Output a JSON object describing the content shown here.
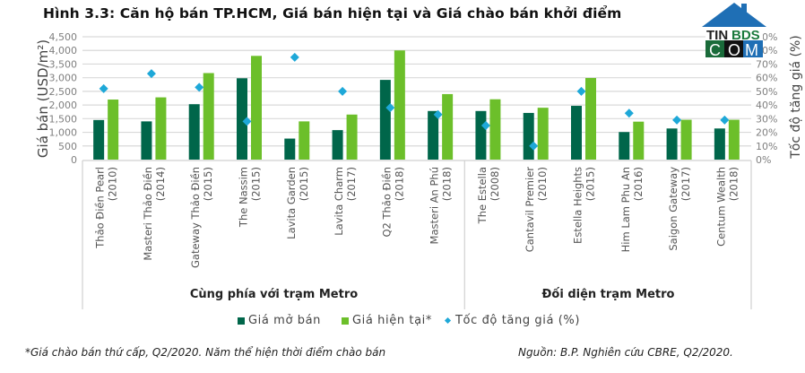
{
  "title": "Hình 3.3: Căn hộ bán TP.HCM, Giá bán hiện tại và Giá chào bán khởi điểm",
  "logo": {
    "line1_dark": "TIN",
    "line1_green": "BDS",
    "line2": [
      "C",
      "O",
      "M"
    ],
    "roof_color": "#1f6fb5"
  },
  "colors": {
    "gia_mo_ban": "#00664a",
    "gia_hien_tai": "#6cbf2a",
    "toc_do": "#1ea8d8",
    "grid": "#d9d9d9",
    "axis_text": "#7f7f7f"
  },
  "groups": [
    {
      "label": "Cùng phía với trạm Metro"
    },
    {
      "label": "Đối diện trạm Metro"
    }
  ],
  "legend": [
    {
      "label": "Giá mở bán",
      "marker": "square",
      "color": "#00664a"
    },
    {
      "label": "Giá hiện tại*",
      "marker": "square",
      "color": "#6cbf2a"
    },
    {
      "label": "Tốc độ tăng giá (%)",
      "marker": "diamond",
      "color": "#1ea8d8"
    }
  ],
  "footnote_left": "*Giá chào bán thứ cấp, Q2/2020. Năm thể hiện thời điểm chào bán",
  "footnote_right": "Nguồn: B.P. Nghiên cứu CBRE, Q2/2020.",
  "chart_data": {
    "type": "bar",
    "title": "Hình 3.3: Căn hộ bán TP.HCM, Giá bán hiện tại và Giá chào bán khởi điểm",
    "xlabel": "",
    "ylabel": "Giá bán (USD/m²)",
    "ylabel_right": "Tốc độ tăng giá (%)",
    "ylim": [
      0,
      4500
    ],
    "yticks": [
      "0",
      "500",
      "1,000",
      "1,500",
      "2,000",
      "2,500",
      "3,000",
      "3,500",
      "4,000",
      "4,500"
    ],
    "ylim_right": [
      0,
      90
    ],
    "yticks_right": [
      "0%",
      "10%",
      "20%",
      "30%",
      "40%",
      "50%",
      "60%",
      "70%",
      "80%",
      "90%"
    ],
    "grid": true,
    "legend_position": "bottom",
    "categories": [
      {
        "name": "Thảo Điền Pearl",
        "year": "(2010)",
        "group": 0
      },
      {
        "name": "Masteri Thảo Điền",
        "year": "(2014)",
        "group": 0
      },
      {
        "name": "Gateway Thảo Điền",
        "year": "(2015)",
        "group": 0
      },
      {
        "name": "The Nassim",
        "year": "(2015)",
        "group": 0
      },
      {
        "name": "Lavita Garden",
        "year": "(2015)",
        "group": 0
      },
      {
        "name": "Lavita Charm",
        "year": "(2017)",
        "group": 0
      },
      {
        "name": "Q2 Thảo Điền",
        "year": "(2018)",
        "group": 0
      },
      {
        "name": "Masteri An Phú",
        "year": "(2018)",
        "group": 0
      },
      {
        "name": "The Estella",
        "year": "(2008)",
        "group": 1
      },
      {
        "name": "Cantavil Premier",
        "year": "(2010)",
        "group": 1
      },
      {
        "name": "Estella Heights",
        "year": "(2015)",
        "group": 1
      },
      {
        "name": "Him Lam Phu An",
        "year": "(2016)",
        "group": 1
      },
      {
        "name": "Saigon Gateway",
        "year": "(2017)",
        "group": 1
      },
      {
        "name": "Centum Wealth",
        "year": "(2018)",
        "group": 1
      }
    ],
    "series": [
      {
        "name": "Giá mở bán",
        "type": "bar",
        "axis": "left",
        "values": [
          1450,
          1400,
          2030,
          2980,
          770,
          1080,
          2920,
          1780,
          1780,
          1710,
          1970,
          1010,
          1140,
          1140
        ]
      },
      {
        "name": "Giá hiện tại*",
        "type": "bar",
        "axis": "left",
        "values": [
          2200,
          2280,
          3170,
          3800,
          1400,
          1650,
          4000,
          2400,
          2210,
          1900,
          2990,
          1390,
          1460,
          1460
        ]
      },
      {
        "name": "Tốc độ tăng giá (%)",
        "type": "scatter",
        "axis": "right",
        "marker": "diamond",
        "values": [
          52,
          63,
          53,
          28,
          75,
          50,
          38,
          33,
          25,
          10,
          50,
          34,
          29,
          29
        ]
      }
    ]
  }
}
